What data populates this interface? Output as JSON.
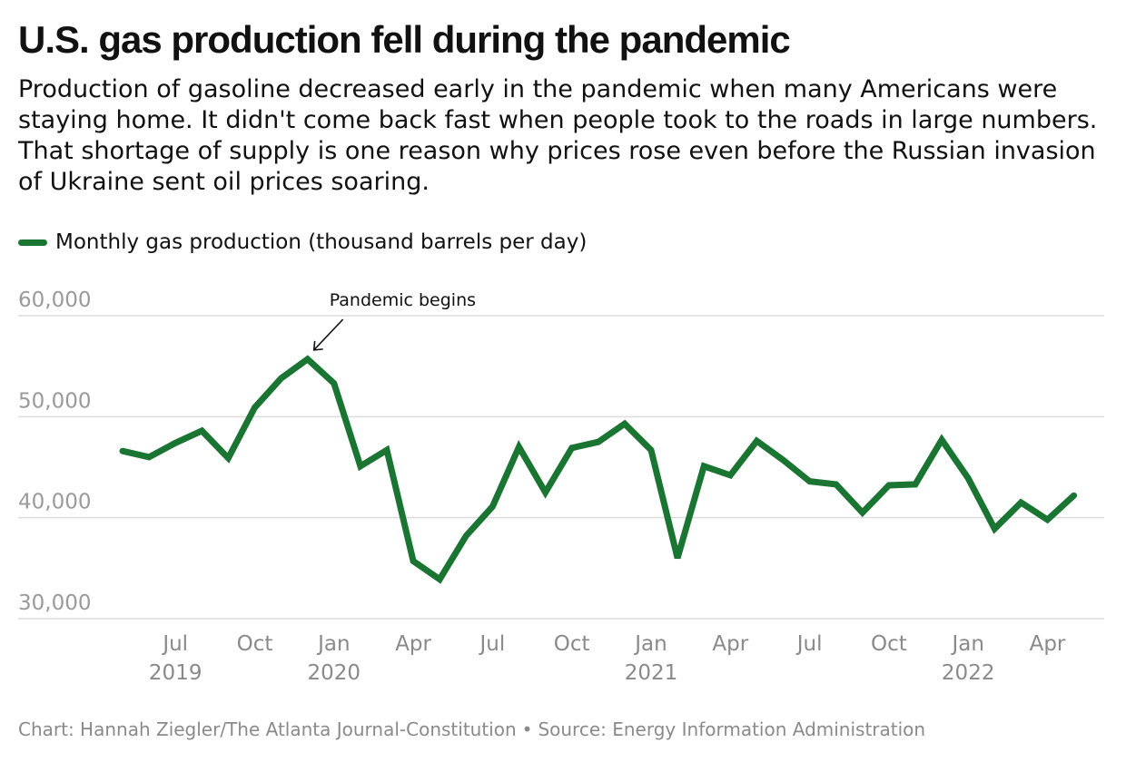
{
  "header": {
    "title": "U.S. gas production fell during the pandemic",
    "subtitle": "Production of gasoline decreased early in the pandemic when many Americans were staying home. It didn't come back fast when people took to the roads in large numbers. That shortage of supply is one reason why prices rose even before the Russian invasion of Ukraine sent oil prices soaring."
  },
  "legend": {
    "label": "Monthly gas production (thousand barrels per day)"
  },
  "footer": {
    "credit": "Chart: Hannah Ziegler/The Atlanta Journal-Constitution",
    "separator": "•",
    "source": "Source: Energy Information Administration"
  },
  "colors": {
    "line": "#1a7432",
    "grid": "#dcdcdc",
    "tick_text": "#9a9a9a"
  },
  "chart_data": {
    "type": "line",
    "series": [
      {
        "name": "Monthly gas production (thousand barrels per day)",
        "x": [
          "2019-05",
          "2019-06",
          "2019-07",
          "2019-08",
          "2019-09",
          "2019-10",
          "2019-11",
          "2019-12",
          "2020-01",
          "2020-02",
          "2020-03",
          "2020-04",
          "2020-05",
          "2020-06",
          "2020-07",
          "2020-08",
          "2020-09",
          "2020-10",
          "2020-11",
          "2020-12",
          "2021-01",
          "2021-02",
          "2021-03",
          "2021-04",
          "2021-05",
          "2021-06",
          "2021-07",
          "2021-08",
          "2021-09",
          "2021-10",
          "2021-11",
          "2021-12",
          "2022-01",
          "2022-02",
          "2022-03",
          "2022-04",
          "2022-05"
        ],
        "values": [
          46600,
          46000,
          47400,
          48600,
          45900,
          50900,
          53800,
          55700,
          53300,
          45100,
          46700,
          35700,
          33900,
          38200,
          41100,
          47000,
          42500,
          46900,
          47500,
          49300,
          46700,
          36000,
          45100,
          44200,
          47600,
          45700,
          43600,
          43300,
          40500,
          43200,
          43300,
          47700,
          43900,
          38900,
          41500,
          39800,
          42200
        ]
      }
    ],
    "y_ticks": [
      "60,000",
      "50,000",
      "40,000",
      "30,000"
    ],
    "ylim": [
      30000,
      60000
    ],
    "x_ticks": [
      {
        "date": "2019-07",
        "month": "Jul",
        "year": "2019"
      },
      {
        "date": "2019-10",
        "month": "Oct",
        "year": ""
      },
      {
        "date": "2020-01",
        "month": "Jan",
        "year": "2020"
      },
      {
        "date": "2020-04",
        "month": "Apr",
        "year": ""
      },
      {
        "date": "2020-07",
        "month": "Jul",
        "year": ""
      },
      {
        "date": "2020-10",
        "month": "Oct",
        "year": ""
      },
      {
        "date": "2021-01",
        "month": "Jan",
        "year": "2021"
      },
      {
        "date": "2021-04",
        "month": "Apr",
        "year": ""
      },
      {
        "date": "2021-07",
        "month": "Jul",
        "year": ""
      },
      {
        "date": "2021-10",
        "month": "Oct",
        "year": ""
      },
      {
        "date": "2022-01",
        "month": "Jan",
        "year": "2022"
      },
      {
        "date": "2022-04",
        "month": "Apr",
        "year": ""
      }
    ],
    "annotation": {
      "text": "Pandemic begins",
      "x": "2019-12",
      "y": 55700
    },
    "grid": true,
    "legend_position": "top-left"
  }
}
